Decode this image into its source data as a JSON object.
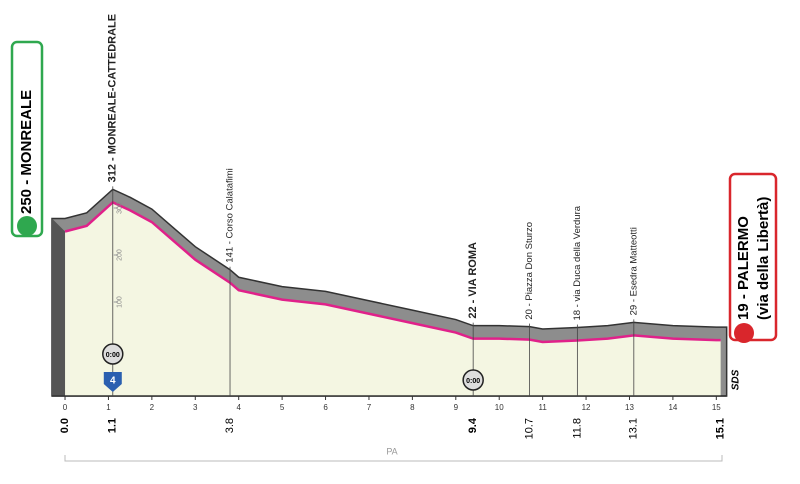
{
  "chart_data": {
    "type": "profile",
    "x": [
      0,
      0.5,
      1.1,
      1.5,
      2,
      2.5,
      3,
      3.8,
      4,
      5,
      6,
      7,
      8,
      9,
      9.4,
      10,
      10.7,
      11,
      11.8,
      12.5,
      13.1,
      14,
      15,
      15.1
    ],
    "values": [
      250,
      262,
      312,
      295,
      270,
      230,
      190,
      141,
      125,
      105,
      95,
      75,
      55,
      35,
      22,
      22,
      20,
      15,
      18,
      22,
      29,
      22,
      19,
      19
    ],
    "color": "#e0218a",
    "xlim": [
      -0.3,
      15.2
    ],
    "ylim": [
      -100,
      400
    ],
    "xticks": [
      0,
      1,
      2,
      3,
      4,
      5,
      6,
      7,
      8,
      9,
      10,
      11,
      12,
      13,
      14,
      15
    ],
    "yticks": [
      100,
      200,
      300
    ],
    "grid": false,
    "markers": [
      {
        "value": 0,
        "label": "0.0"
      },
      {
        "value": 1.1,
        "label": "1.1"
      },
      {
        "value": 3.8,
        "label": "3.8"
      },
      {
        "value": 9.4,
        "label": "9.4"
      },
      {
        "value": 10.7,
        "label": "10.7"
      },
      {
        "value": 11.8,
        "label": "11.8"
      },
      {
        "value": 13.1,
        "label": "13.1"
      },
      {
        "value": 15.1,
        "label": "15.1"
      }
    ],
    "annotations": [
      {
        "x": 1.1,
        "text": "312 - MONREALE-CATTEDRALE"
      },
      {
        "x": 3.8,
        "text": "141 - Corso Calatafimi"
      },
      {
        "x": 9.4,
        "text": "22 - VIA ROMA"
      },
      {
        "x": 10.7,
        "text": "20 - Piazza Don Sturzo"
      },
      {
        "x": 11.8,
        "text": "18 - via Duca della Verdura"
      },
      {
        "x": 13.1,
        "text": "29 - Esedra Matteotti"
      }
    ],
    "start_label": "250 - MONREALE",
    "finish_label": [
      "19 - PALERMO",
      "(via della Libertà)"
    ],
    "timing_points": [
      {
        "x": 1.1,
        "text": "0:00"
      },
      {
        "x": 9.4,
        "text": "0:00"
      }
    ],
    "climb_category": "4",
    "range_label": "PA",
    "side_label": "SDS"
  }
}
